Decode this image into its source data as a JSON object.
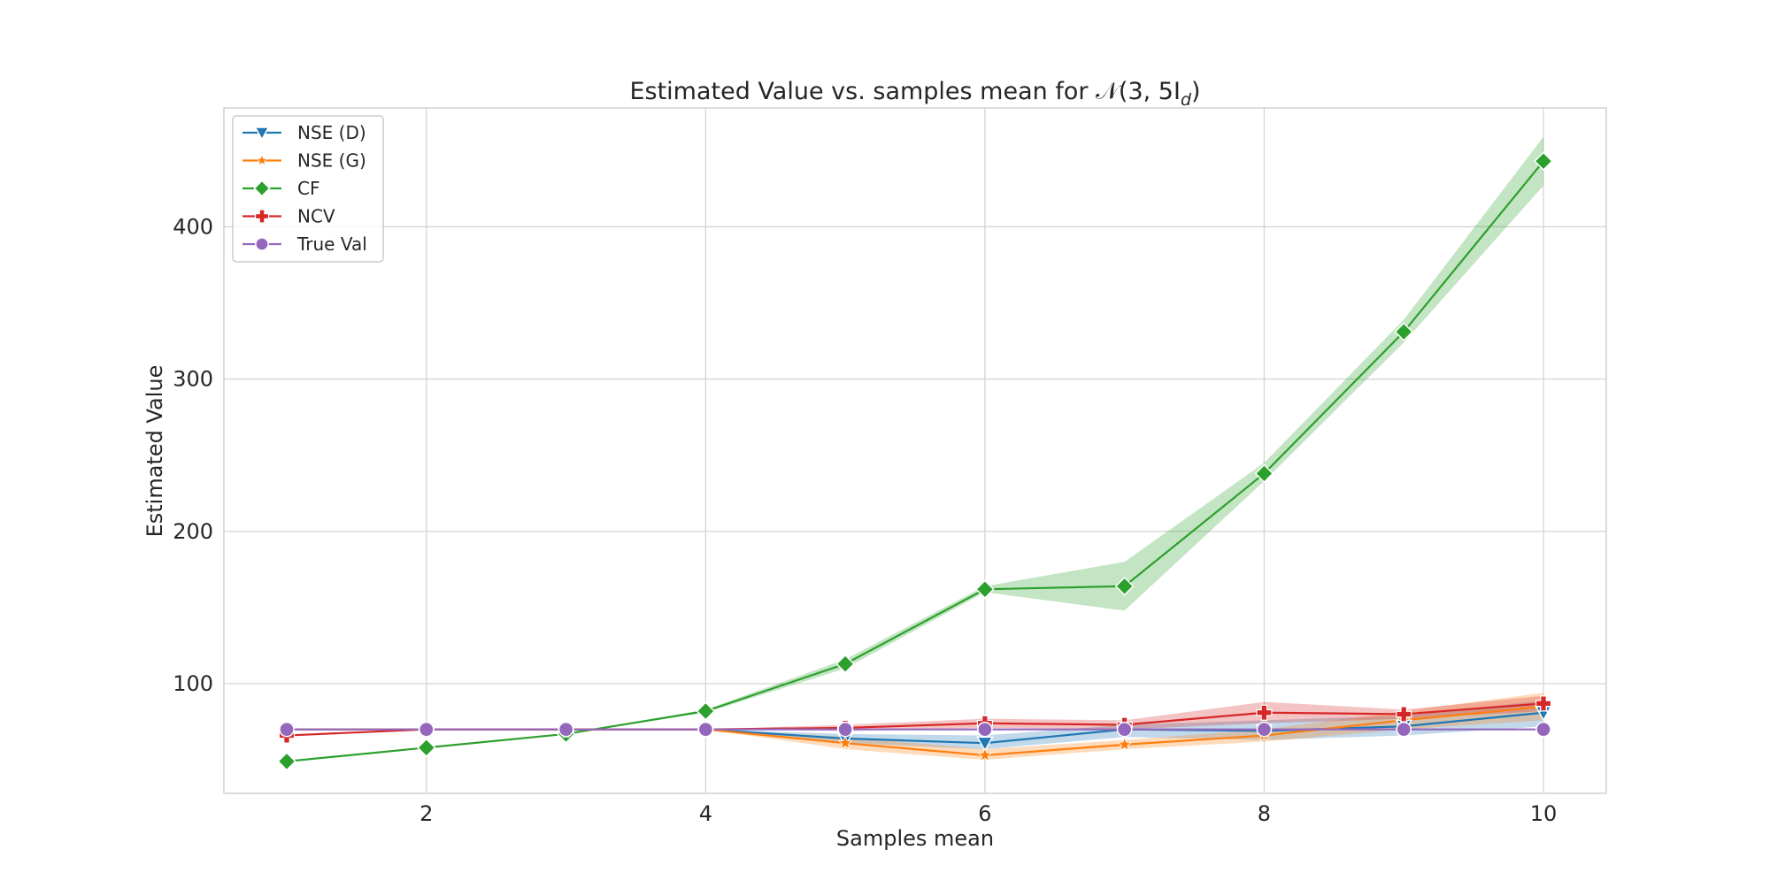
{
  "chart_data": {
    "type": "line",
    "title": "Estimated Value vs. samples mean for 𝒩(3, 5I",
    "title_subscript": "d",
    "title_suffix": ")",
    "xlabel": "Samples mean",
    "ylabel": "Estimated Value",
    "xlim": [
      0.55,
      10.45
    ],
    "ylim": [
      28,
      478
    ],
    "xticks": [
      2,
      4,
      6,
      8,
      10
    ],
    "yticks": [
      100,
      200,
      300,
      400
    ],
    "grid": true,
    "legend_position": "top-left",
    "x": [
      1,
      2,
      3,
      4,
      5,
      6,
      7,
      8,
      9,
      10
    ],
    "series": [
      {
        "name": "NSE (D)",
        "color": "#1f77b4",
        "marker": "triangle-down",
        "values": [
          70,
          70,
          70,
          70,
          64,
          61,
          70,
          69,
          72,
          81
        ],
        "band_lower": [
          70,
          70,
          70,
          70,
          61,
          57,
          65,
          63,
          66,
          72
        ],
        "band_upper": [
          70,
          70,
          70,
          70,
          67,
          66,
          73,
          76,
          79,
          89
        ]
      },
      {
        "name": "NSE (G)",
        "color": "#ff7f0e",
        "marker": "star",
        "values": [
          70,
          70,
          70,
          70,
          61,
          53,
          60,
          66,
          76,
          85
        ],
        "band_lower": [
          70,
          70,
          70,
          70,
          57,
          50,
          57,
          62,
          70,
          76
        ],
        "band_upper": [
          70,
          70,
          70,
          70,
          65,
          57,
          63,
          70,
          82,
          94
        ]
      },
      {
        "name": "CF",
        "color": "#2ca02c",
        "marker": "diamond",
        "values": [
          49,
          58,
          67,
          82,
          113,
          162,
          164,
          238,
          331,
          443
        ],
        "band_lower": [
          49,
          58,
          67,
          81,
          110,
          160,
          148,
          233,
          324,
          427
        ],
        "band_upper": [
          49,
          58,
          67,
          83,
          116,
          164,
          180,
          245,
          339,
          459
        ]
      },
      {
        "name": "NCV",
        "color": "#d62728",
        "marker": "plus",
        "values": [
          66,
          70,
          70,
          70,
          71,
          74,
          73,
          81,
          80,
          87
        ],
        "band_lower": [
          66,
          70,
          70,
          70,
          69,
          71,
          70,
          74,
          77,
          82
        ],
        "band_upper": [
          66,
          70,
          70,
          70,
          73,
          77,
          76,
          88,
          83,
          92
        ]
      },
      {
        "name": "True Val",
        "color": "#9467bd",
        "marker": "circle",
        "values": [
          70,
          70,
          70,
          70,
          70,
          70,
          70,
          70,
          70,
          70
        ]
      }
    ]
  }
}
